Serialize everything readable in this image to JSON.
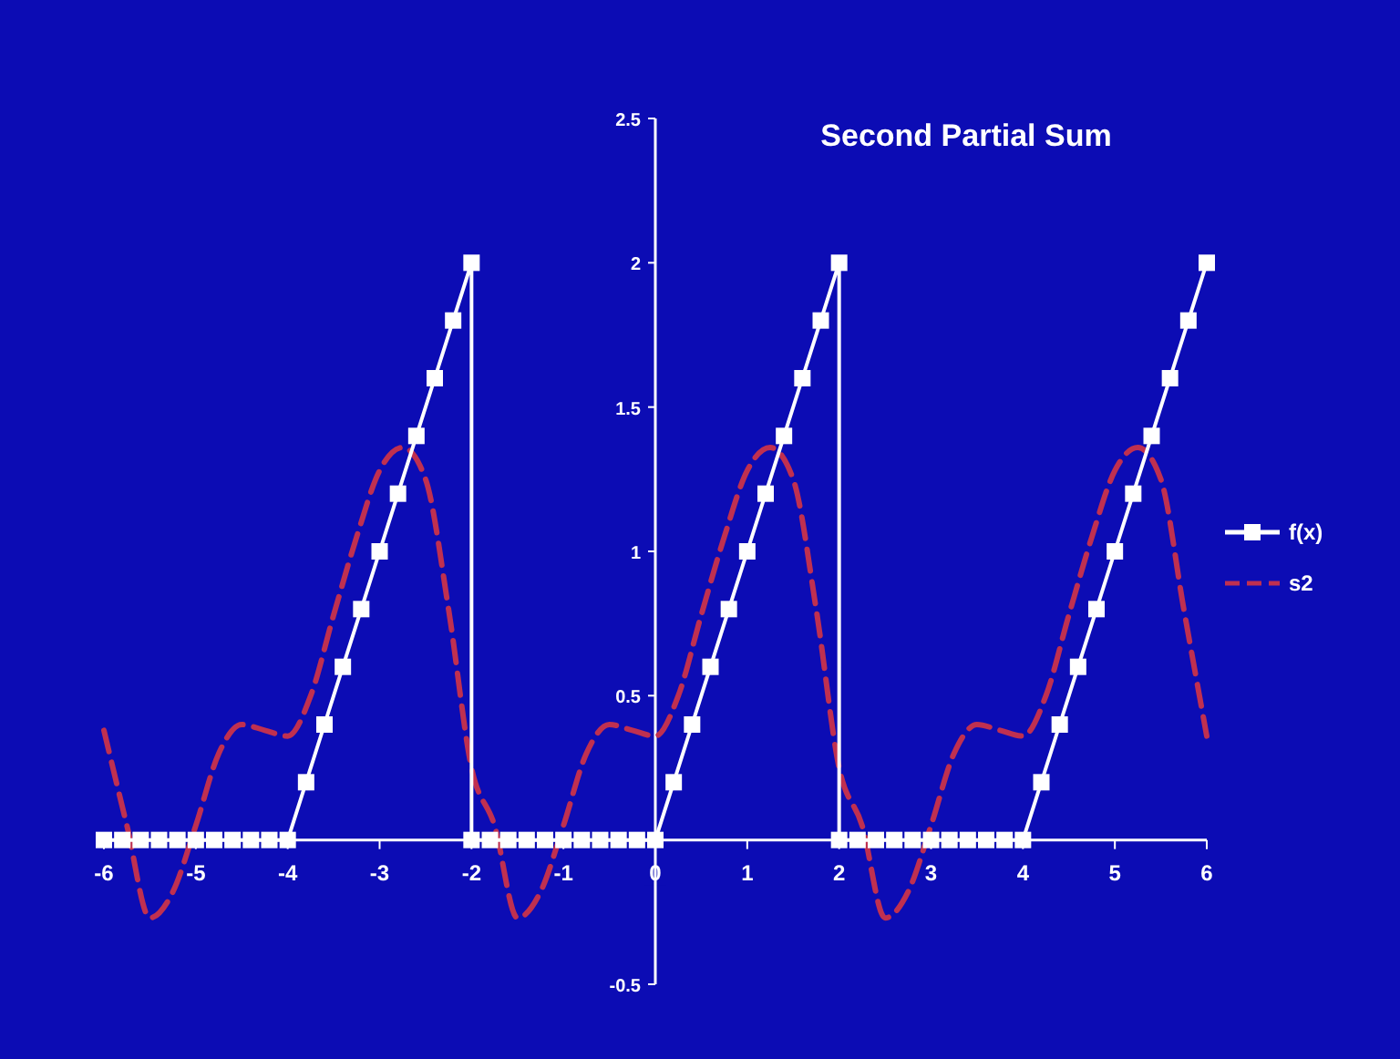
{
  "chart_data": {
    "type": "line",
    "title": "Second Partial Sum",
    "xlim": [
      -6,
      6
    ],
    "ylim": [
      -0.5,
      2.5
    ],
    "xticks": [
      -6,
      -5,
      -4,
      -3,
      -2,
      -1,
      0,
      1,
      2,
      3,
      4,
      5,
      6
    ],
    "yticks": [
      -0.5,
      {
        "value": 0,
        "label": null
      },
      0.5,
      1,
      1.5,
      2,
      2.5
    ],
    "legend": "right",
    "series": [
      {
        "name": "f(x)",
        "color": "#ffffff",
        "marker": "square",
        "line_style": "solid",
        "x": [
          -6,
          -5.8,
          -5.6,
          -5.4,
          -5.2,
          -5,
          -4.8,
          -4.6,
          -4.4,
          -4.2,
          -4,
          -3.8,
          -3.6,
          -3.4,
          -3.2,
          -3,
          -2.8,
          -2.6,
          -2.4,
          -2.2,
          -2,
          -2,
          -1.8,
          -1.6,
          -1.4,
          -1.2,
          -1,
          -0.8,
          -0.6,
          -0.4,
          -0.2,
          0,
          0.2,
          0.4,
          0.6,
          0.8,
          1,
          1.2,
          1.4,
          1.6,
          1.8,
          2,
          2,
          2.2,
          2.4,
          2.6,
          2.8,
          3,
          3.2,
          3.4,
          3.6,
          3.8,
          4,
          4.2,
          4.4,
          4.6,
          4.8,
          5,
          5.2,
          5.4,
          5.6,
          5.8,
          6
        ],
        "values": [
          0,
          0,
          0,
          0,
          0,
          0,
          0,
          0,
          0,
          0,
          0,
          0.2,
          0.4,
          0.6,
          0.8,
          1,
          1.2,
          1.4,
          1.6,
          1.8,
          2,
          0,
          0,
          0,
          0,
          0,
          0,
          0,
          0,
          0,
          0,
          0,
          0.2,
          0.4,
          0.6,
          0.8,
          1,
          1.2,
          1.4,
          1.6,
          1.8,
          2,
          0,
          0,
          0,
          0,
          0,
          0,
          0,
          0,
          0,
          0,
          0,
          0.2,
          0.4,
          0.6,
          0.8,
          1,
          1.2,
          1.4,
          1.6,
          1.8,
          2
        ]
      },
      {
        "name": "s2",
        "color": "#c03050",
        "marker": "none",
        "line_style": "dashed",
        "x": [
          -6,
          -5.75,
          -5.5,
          -5.25,
          -5,
          -4.75,
          -4.5,
          -4.25,
          -4,
          -3.75,
          -3.5,
          -3.25,
          -3,
          -2.75,
          -2.5,
          -2.25,
          -2,
          -1.75,
          -1.5,
          -1.25,
          -1,
          -0.75,
          -0.5,
          -0.25,
          0,
          0.25,
          0.5,
          0.75,
          1,
          1.25,
          1.5,
          1.75,
          2,
          2.25,
          2.5,
          2.75,
          3,
          3.25,
          3.5,
          3.75,
          4,
          4.25,
          4.5,
          4.75,
          5,
          5.25,
          5.5,
          5.75,
          6
        ],
        "values": [
          0.38,
          0.05,
          -0.27,
          -0.18,
          0.05,
          0.3,
          0.4,
          0.38,
          0.36,
          0.5,
          0.78,
          1.05,
          1.28,
          1.36,
          1.25,
          0.8,
          0.25,
          0.05,
          -0.27,
          -0.18,
          0.05,
          0.3,
          0.4,
          0.38,
          0.36,
          0.5,
          0.78,
          1.05,
          1.28,
          1.36,
          1.25,
          0.8,
          0.25,
          0.05,
          -0.27,
          -0.18,
          0.05,
          0.3,
          0.4,
          0.38,
          0.36,
          0.5,
          0.78,
          1.05,
          1.28,
          1.36,
          1.25,
          0.8,
          0.36
        ]
      }
    ]
  }
}
